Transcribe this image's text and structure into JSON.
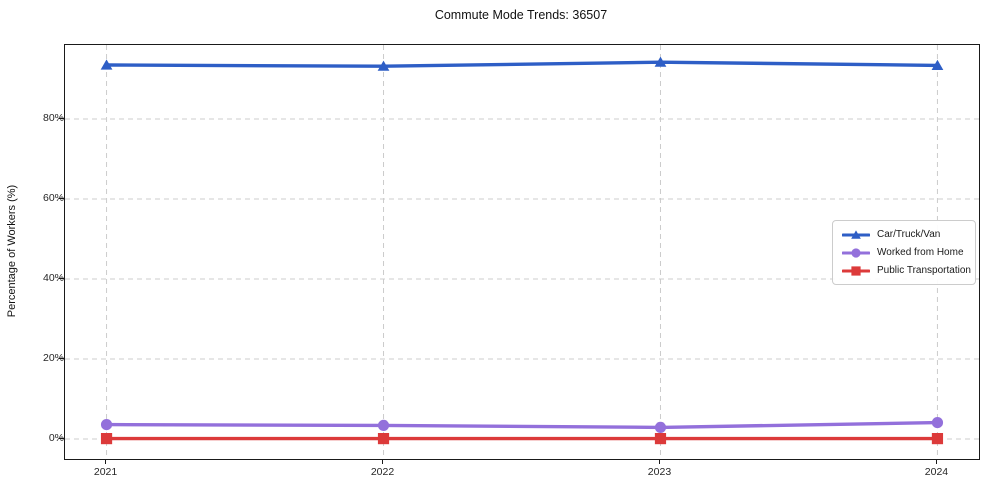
{
  "title": "Commute Mode Trends: 36507",
  "chart_data": {
    "type": "line",
    "title": "Commute Mode Trends: 36507",
    "xlabel": "",
    "ylabel": "Percentage of Workers (%)",
    "x": [
      2021,
      2022,
      2023,
      2024
    ],
    "xtick_labels": [
      "2021",
      "2022",
      "2023",
      "2024"
    ],
    "series": [
      {
        "name": "Car/Truck/Van",
        "marker": "triangle",
        "color": "#2e5ec6",
        "values": [
          93.5,
          93.2,
          94.2,
          93.4
        ]
      },
      {
        "name": "Worked from Home",
        "marker": "circle",
        "color": "#9370db",
        "values": [
          3.6,
          3.4,
          2.9,
          4.1
        ]
      },
      {
        "name": "Public Transportation",
        "marker": "square",
        "color": "#dc3a3a",
        "values": [
          0.1,
          0.1,
          0.1,
          0.1
        ]
      }
    ],
    "yticks": [
      0,
      20,
      40,
      60,
      80
    ],
    "ytick_labels": [
      "0%",
      "20%",
      "40%",
      "60%",
      "80%"
    ],
    "ylim": [
      -5,
      98.5
    ],
    "xlim": [
      2020.85,
      2024.15
    ],
    "grid": true,
    "grid_style": "dashed",
    "grid_color": "#cccccc",
    "legend_position": "center right"
  }
}
